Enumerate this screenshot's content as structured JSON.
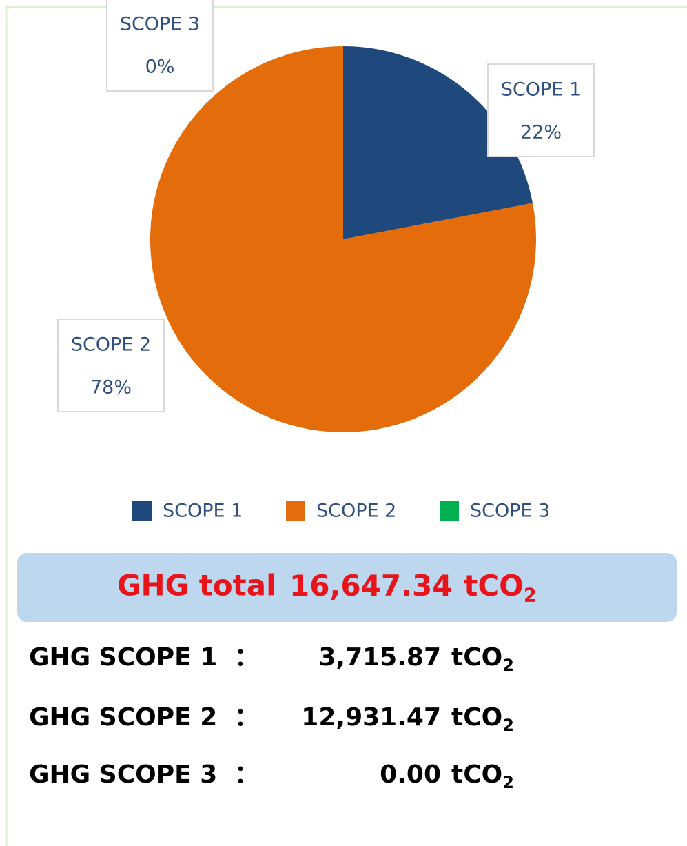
{
  "chart_data": {
    "type": "pie",
    "categories": [
      "SCOPE 1",
      "SCOPE 2",
      "SCOPE 3"
    ],
    "values": [
      22,
      78,
      0
    ],
    "value_labels": [
      "22%",
      "78%",
      "0%"
    ],
    "colors": [
      "#1f497d",
      "#e46c0a",
      "#00b050"
    ],
    "legend": "bottom"
  },
  "summary": {
    "total": {
      "label": "GHG total",
      "value": "16,647.34",
      "unit": "tCO",
      "unit_sub": "2"
    },
    "rows": [
      {
        "label": "GHG SCOPE 1",
        "sep": "：",
        "value": "3,715.87",
        "unit": "tCO",
        "unit_sub": "2"
      },
      {
        "label": "GHG SCOPE 2",
        "sep": "：",
        "value": "12,931.47",
        "unit": "tCO",
        "unit_sub": "2"
      },
      {
        "label": "GHG SCOPE 3",
        "sep": "：",
        "value": "0.00",
        "unit": "tCO",
        "unit_sub": "2"
      }
    ]
  }
}
